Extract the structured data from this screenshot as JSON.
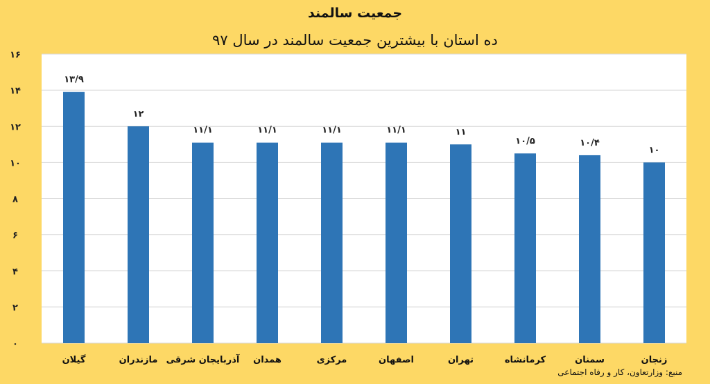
{
  "chart_data": {
    "type": "bar",
    "title": "جمعیت سالمند",
    "subtitle": "ده استان با بیشترین جمعیت سالمند در سال ۹۷",
    "categories": [
      "گیلان",
      "مازندران",
      "آذربایجان شرقی",
      "همدان",
      "مرکزی",
      "اصفهان",
      "تهران",
      "کرمانشاه",
      "سمنان",
      "زنجان"
    ],
    "values": [
      13.9,
      12,
      11.1,
      11.1,
      11.1,
      11.1,
      11,
      10.5,
      10.4,
      10
    ],
    "data_labels": [
      "۱۳/۹",
      "۱۲",
      "۱۱/۱",
      "۱۱/۱",
      "۱۱/۱",
      "۱۱/۱",
      "۱۱",
      "۱۰/۵",
      "۱۰/۴",
      "۱۰"
    ],
    "yticks": [
      "۰",
      "۲",
      "۴",
      "۶",
      "۸",
      "۱۰",
      "۱۲",
      "۱۴",
      "۱۶"
    ],
    "ylim": [
      0,
      16
    ],
    "grid": true,
    "bar_color": "#2e75b6",
    "plot_background": "#ffffff",
    "background": "#fdd865",
    "source": "منبع: وزارتعاون، کار و رفاه اجتماعی"
  }
}
